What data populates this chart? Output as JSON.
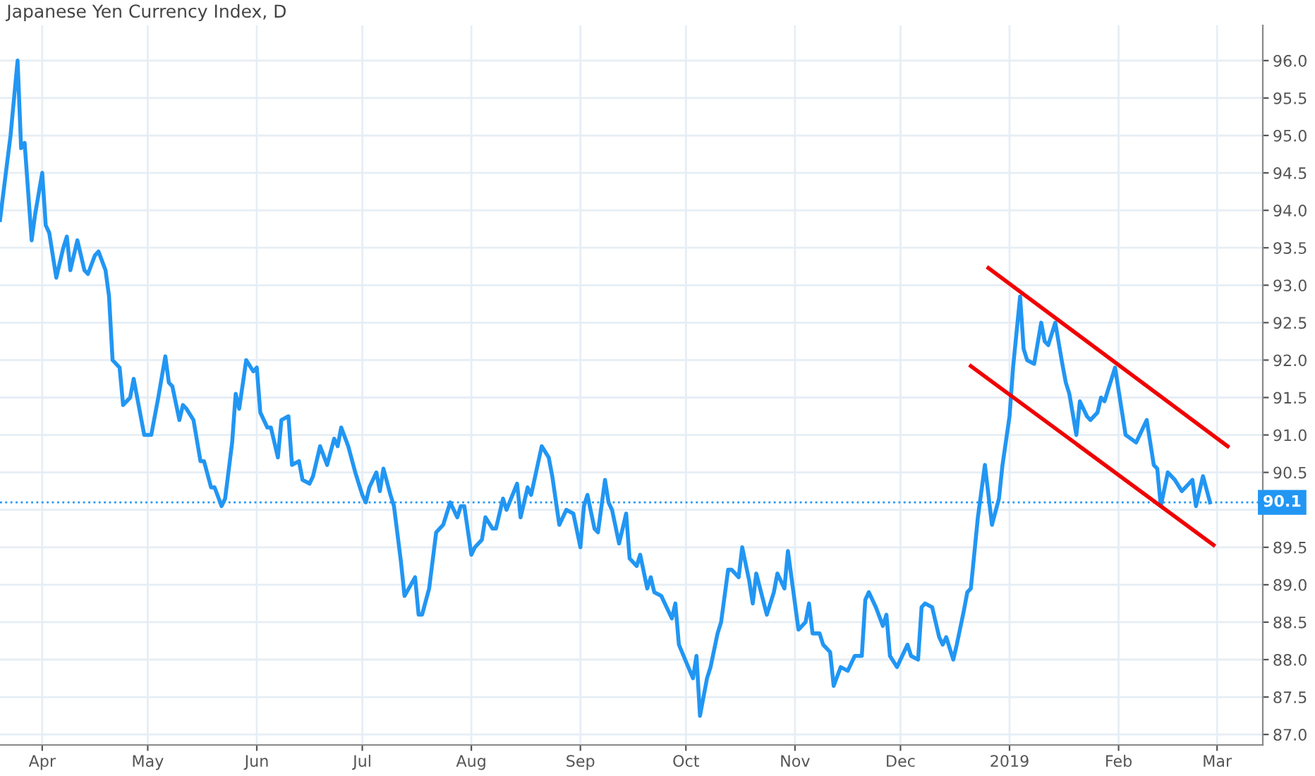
{
  "chart_data": {
    "type": "line",
    "title": "Japanese Yen Currency Index, D",
    "x": [
      "2018-03-20",
      "2018-03-21",
      "2018-03-23",
      "2018-03-25",
      "2018-03-26",
      "2018-03-27",
      "2018-03-29",
      "2018-03-30",
      "2018-04-01",
      "2018-04-02",
      "2018-04-03",
      "2018-04-05",
      "2018-04-07",
      "2018-04-08",
      "2018-04-09",
      "2018-04-11",
      "2018-04-13",
      "2018-04-14",
      "2018-04-16",
      "2018-04-17",
      "2018-04-19",
      "2018-04-20",
      "2018-04-21",
      "2018-04-23",
      "2018-04-24",
      "2018-04-26",
      "2018-04-27",
      "2018-04-28",
      "2018-04-30",
      "2018-05-02",
      "2018-05-04",
      "2018-05-06",
      "2018-05-07",
      "2018-05-08",
      "2018-05-10",
      "2018-05-11",
      "2018-05-12",
      "2018-05-14",
      "2018-05-16",
      "2018-05-17",
      "2018-05-19",
      "2018-05-20",
      "2018-05-22",
      "2018-05-23",
      "2018-05-25",
      "2018-05-26",
      "2018-05-27",
      "2018-05-29",
      "2018-05-31",
      "2018-06-01",
      "2018-06-02",
      "2018-06-04",
      "2018-06-05",
      "2018-06-07",
      "2018-06-08",
      "2018-06-10",
      "2018-06-11",
      "2018-06-13",
      "2018-06-14",
      "2018-06-16",
      "2018-06-17",
      "2018-06-19",
      "2018-06-21",
      "2018-06-23",
      "2018-06-24",
      "2018-06-25",
      "2018-06-27",
      "2018-06-29",
      "2018-07-01",
      "2018-07-02",
      "2018-07-03",
      "2018-07-05",
      "2018-07-06",
      "2018-07-07",
      "2018-07-09",
      "2018-07-10",
      "2018-07-12",
      "2018-07-13",
      "2018-07-16",
      "2018-07-17",
      "2018-07-18",
      "2018-07-20",
      "2018-07-22",
      "2018-07-24",
      "2018-07-26",
      "2018-07-28",
      "2018-07-29",
      "2018-07-30",
      "2018-08-01",
      "2018-08-02",
      "2018-08-04",
      "2018-08-05",
      "2018-08-07",
      "2018-08-08",
      "2018-08-10",
      "2018-08-11",
      "2018-08-14",
      "2018-08-15",
      "2018-08-17",
      "2018-08-18",
      "2018-08-21",
      "2018-08-23",
      "2018-08-24",
      "2018-08-26",
      "2018-08-27",
      "2018-08-28",
      "2018-08-30",
      "2018-09-01",
      "2018-09-02",
      "2018-09-03",
      "2018-09-05",
      "2018-09-06",
      "2018-09-08",
      "2018-09-09",
      "2018-09-10",
      "2018-09-12",
      "2018-09-14",
      "2018-09-15",
      "2018-09-17",
      "2018-09-18",
      "2018-09-20",
      "2018-09-21",
      "2018-09-22",
      "2018-09-24",
      "2018-09-27",
      "2018-09-28",
      "2018-09-29",
      "2018-10-03",
      "2018-10-04",
      "2018-10-05",
      "2018-10-07",
      "2018-10-08",
      "2018-10-10",
      "2018-10-11",
      "2018-10-13",
      "2018-10-14",
      "2018-10-16",
      "2018-10-17",
      "2018-10-19",
      "2018-10-20",
      "2018-10-21",
      "2018-10-24",
      "2018-10-26",
      "2018-10-27",
      "2018-10-29",
      "2018-10-30",
      "2018-11-02",
      "2018-11-04",
      "2018-11-05",
      "2018-11-06",
      "2018-11-08",
      "2018-11-09",
      "2018-11-11",
      "2018-11-12",
      "2018-11-14",
      "2018-11-16",
      "2018-11-18",
      "2018-11-20",
      "2018-11-21",
      "2018-11-22",
      "2018-11-24",
      "2018-11-26",
      "2018-11-27",
      "2018-11-28",
      "2018-11-30",
      "2018-12-01",
      "2018-12-03",
      "2018-12-04",
      "2018-12-06",
      "2018-12-07",
      "2018-12-08",
      "2018-12-10",
      "2018-12-12",
      "2018-12-13",
      "2018-12-14",
      "2018-12-16",
      "2018-12-17",
      "2018-12-19",
      "2018-12-20",
      "2018-12-21",
      "2018-12-23",
      "2018-12-25",
      "2018-12-27",
      "2018-12-29",
      "2018-12-30",
      "2019-01-01",
      "2019-01-02",
      "2019-01-04",
      "2019-01-05",
      "2019-01-06",
      "2019-01-08",
      "2019-01-10",
      "2019-01-11",
      "2019-01-12",
      "2019-01-14",
      "2019-01-16",
      "2019-01-17",
      "2019-01-18",
      "2019-01-20",
      "2019-01-21",
      "2019-01-23",
      "2019-01-24",
      "2019-01-26",
      "2019-01-27",
      "2019-01-28",
      "2019-01-30",
      "2019-01-31",
      "2019-02-02",
      "2019-02-03",
      "2019-02-06",
      "2019-02-09",
      "2019-02-11",
      "2019-02-12",
      "2019-02-13",
      "2019-02-15",
      "2019-02-17",
      "2019-02-19",
      "2019-02-21",
      "2019-02-22",
      "2019-02-23",
      "2019-02-25",
      "2019-02-27"
    ],
    "series": [
      {
        "color": "#2196f3",
        "values": [
          93.87,
          94.25,
          95.0,
          96.0,
          94.83,
          94.9,
          93.6,
          93.95,
          94.5,
          93.8,
          93.7,
          93.1,
          93.5,
          93.65,
          93.2,
          93.6,
          93.2,
          93.15,
          93.4,
          93.45,
          93.2,
          92.85,
          92.0,
          91.9,
          91.4,
          91.5,
          91.75,
          91.5,
          91.0,
          91.0,
          91.5,
          92.05,
          91.7,
          91.65,
          91.2,
          91.4,
          91.35,
          91.2,
          90.65,
          90.65,
          90.3,
          90.3,
          90.05,
          90.15,
          90.9,
          91.55,
          91.35,
          92.0,
          91.85,
          91.9,
          91.3,
          91.1,
          91.1,
          90.7,
          91.2,
          91.25,
          90.6,
          90.65,
          90.4,
          90.35,
          90.45,
          90.85,
          90.6,
          90.95,
          90.85,
          91.1,
          90.85,
          90.5,
          90.2,
          90.1,
          90.3,
          90.5,
          90.25,
          90.55,
          90.2,
          90.05,
          89.3,
          88.85,
          89.1,
          88.6,
          88.6,
          88.95,
          89.7,
          89.8,
          90.1,
          89.9,
          90.05,
          90.05,
          89.4,
          89.5,
          89.6,
          89.9,
          89.75,
          89.75,
          90.15,
          90.0,
          90.35,
          89.9,
          90.3,
          90.2,
          90.85,
          90.7,
          90.45,
          89.8,
          89.9,
          90.0,
          89.95,
          89.5,
          90.05,
          90.2,
          89.75,
          89.7,
          90.4,
          90.1,
          90.0,
          89.55,
          89.95,
          89.35,
          89.25,
          89.4,
          88.95,
          89.1,
          88.9,
          88.85,
          88.55,
          88.75,
          88.2,
          87.75,
          88.05,
          87.25,
          87.75,
          87.9,
          88.35,
          88.5,
          89.2,
          89.2,
          89.1,
          89.5,
          89.05,
          88.75,
          89.15,
          88.6,
          88.9,
          89.15,
          88.95,
          89.45,
          88.4,
          88.5,
          88.75,
          88.35,
          88.35,
          88.2,
          88.1,
          87.65,
          87.9,
          87.85,
          88.05,
          88.05,
          88.8,
          88.9,
          88.7,
          88.45,
          88.6,
          88.05,
          87.9,
          88.0,
          88.2,
          88.05,
          88.0,
          88.7,
          88.75,
          88.7,
          88.3,
          88.2,
          88.3,
          88.0,
          88.2,
          88.65,
          88.9,
          88.95,
          89.9,
          90.6,
          89.8,
          90.15,
          90.6,
          91.25,
          91.9,
          92.85,
          92.15,
          92.0,
          91.95,
          92.5,
          92.25,
          92.2,
          92.5,
          91.95,
          91.7,
          91.55,
          91.0,
          91.45,
          91.25,
          91.2,
          91.3,
          91.5,
          91.45,
          91.75,
          91.9,
          91.3,
          91.0,
          90.9,
          91.2,
          90.6,
          90.55,
          90.05,
          90.5,
          90.4,
          90.25,
          90.35,
          90.4,
          90.05,
          90.45,
          90.1
        ]
      },
      {
        "type": "line",
        "color": "#f00000",
        "x": [
          "2018-12-26",
          "2019-03-04"
        ],
        "values": [
          93.23,
          90.85
        ]
      },
      {
        "type": "line",
        "color": "#f00000",
        "x": [
          "2018-12-21",
          "2019-02-28"
        ],
        "values": [
          91.92,
          89.53
        ]
      }
    ],
    "xlim": [
      "2018-03-20",
      "2019-03-14"
    ],
    "xticks": [
      {
        "value": "2018-04-01",
        "label": "Apr"
      },
      {
        "value": "2018-05-01",
        "label": "May"
      },
      {
        "value": "2018-06-01",
        "label": "Jun"
      },
      {
        "value": "2018-07-01",
        "label": "Jul"
      },
      {
        "value": "2018-08-01",
        "label": "Aug"
      },
      {
        "value": "2018-09-01",
        "label": "Sep"
      },
      {
        "value": "2018-10-01",
        "label": "Oct"
      },
      {
        "value": "2018-11-01",
        "label": "Nov"
      },
      {
        "value": "2018-12-01",
        "label": "Dec"
      },
      {
        "value": "2019-01-01",
        "label": "2019"
      },
      {
        "value": "2019-02-01",
        "label": "Feb"
      },
      {
        "value": "2019-03-01",
        "label": "Mar"
      }
    ],
    "ylim": [
      86.86,
      96.47
    ],
    "yticks": [
      {
        "value": 87,
        "label": "87.0"
      },
      {
        "value": 87.5,
        "label": "87.5"
      },
      {
        "value": 88,
        "label": "88.0"
      },
      {
        "value": 88.5,
        "label": "88.5"
      },
      {
        "value": 89,
        "label": "89.0"
      },
      {
        "value": 89.5,
        "label": "89.5"
      },
      {
        "value": 90,
        "label": null
      },
      {
        "value": 90.5,
        "label": "90.5"
      },
      {
        "value": 91,
        "label": "91.0"
      },
      {
        "value": 91.5,
        "label": "91.5"
      },
      {
        "value": 92,
        "label": "92.0"
      },
      {
        "value": 92.5,
        "label": "92.5"
      },
      {
        "value": 93,
        "label": "93.0"
      },
      {
        "value": 93.5,
        "label": "93.5"
      },
      {
        "value": 94,
        "label": "94.0"
      },
      {
        "value": 94.5,
        "label": "94.5"
      },
      {
        "value": 95,
        "label": "95.0"
      },
      {
        "value": 95.5,
        "label": "95.5"
      },
      {
        "value": 96,
        "label": "96.0"
      }
    ],
    "ref_lines": [
      {
        "axis": "y",
        "value": 90.1,
        "label": "90.1",
        "color": "#2196f3",
        "line_style": "dotted"
      }
    ],
    "grid": true,
    "line_style": "solid"
  }
}
